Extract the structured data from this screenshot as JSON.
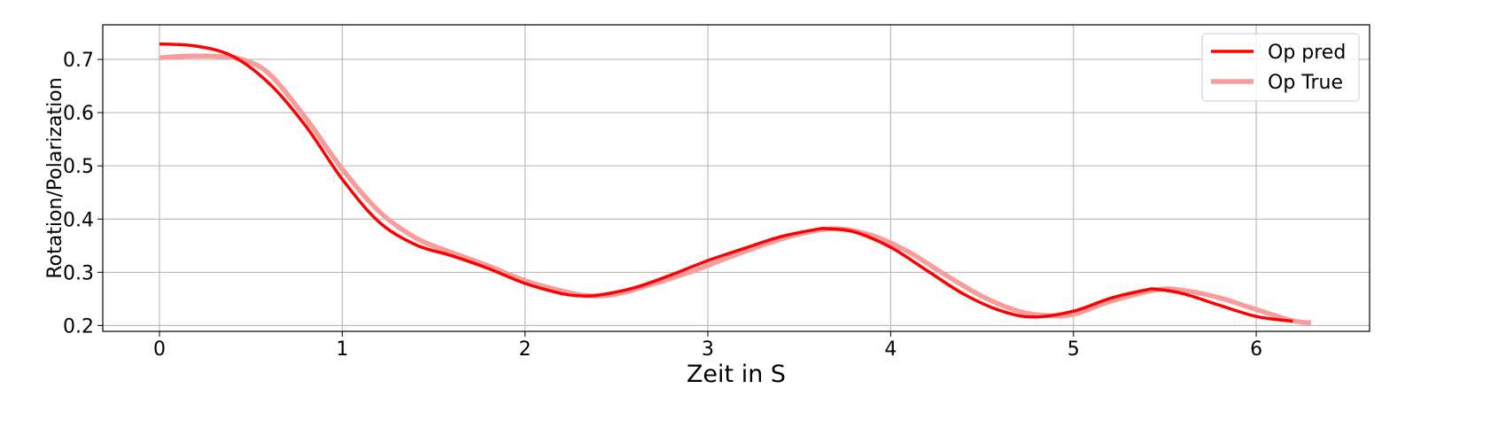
{
  "chart_data": {
    "type": "line",
    "title": "",
    "xlabel": "Zeit in S",
    "ylabel": "Rotation/Polarization",
    "xlim": [
      -0.31,
      6.62
    ],
    "ylim": [
      0.189,
      0.765
    ],
    "xticks": [
      0,
      1,
      2,
      3,
      4,
      5,
      6
    ],
    "yticks": [
      0.2,
      0.3,
      0.4,
      0.5,
      0.6,
      0.7
    ],
    "xtick_labels": [
      "0",
      "1",
      "2",
      "3",
      "4",
      "5",
      "6"
    ],
    "ytick_labels": [
      "0.2",
      "0.3",
      "0.4",
      "0.5",
      "0.6",
      "0.7"
    ],
    "grid": true,
    "legend_position": "top-right",
    "series": [
      {
        "name": "Op pred",
        "color": "#ff0000",
        "x": [
          0,
          0.2,
          0.4,
          0.6,
          0.8,
          1.0,
          1.2,
          1.4,
          1.6,
          1.8,
          2.0,
          2.2,
          2.3,
          2.4,
          2.6,
          2.8,
          3.0,
          3.2,
          3.4,
          3.6,
          3.65,
          3.8,
          4.0,
          4.2,
          4.4,
          4.6,
          4.78,
          5.0,
          5.2,
          5.4,
          5.45,
          5.6,
          5.8,
          6.0,
          6.2
        ],
        "y": [
          0.729,
          0.725,
          0.706,
          0.655,
          0.575,
          0.475,
          0.395,
          0.352,
          0.331,
          0.307,
          0.279,
          0.26,
          0.256,
          0.257,
          0.271,
          0.295,
          0.322,
          0.345,
          0.367,
          0.381,
          0.382,
          0.376,
          0.347,
          0.303,
          0.259,
          0.228,
          0.216,
          0.227,
          0.251,
          0.267,
          0.268,
          0.26,
          0.238,
          0.217,
          0.208
        ]
      },
      {
        "name": "Op True",
        "color": "#f89c9c",
        "x": [
          0,
          0.15,
          0.3,
          0.45,
          0.6,
          0.8,
          1.0,
          1.2,
          1.4,
          1.6,
          1.8,
          2.0,
          2.2,
          2.35,
          2.5,
          2.7,
          2.9,
          3.1,
          3.3,
          3.5,
          3.7,
          3.9,
          4.1,
          4.3,
          4.5,
          4.7,
          4.85,
          5.0,
          5.2,
          5.45,
          5.6,
          5.8,
          6.0,
          6.2,
          6.3
        ],
        "y": [
          0.703,
          0.706,
          0.706,
          0.7,
          0.673,
          0.59,
          0.494,
          0.415,
          0.365,
          0.337,
          0.312,
          0.284,
          0.265,
          0.256,
          0.259,
          0.278,
          0.3,
          0.326,
          0.351,
          0.372,
          0.382,
          0.369,
          0.338,
          0.295,
          0.255,
          0.227,
          0.219,
          0.221,
          0.245,
          0.267,
          0.266,
          0.252,
          0.23,
          0.209,
          0.205
        ]
      }
    ]
  }
}
